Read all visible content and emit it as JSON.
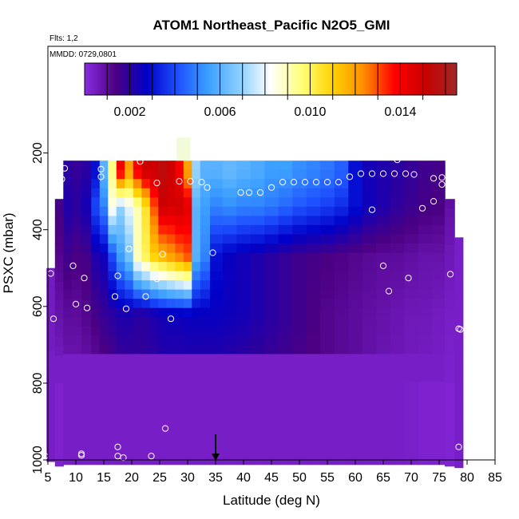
{
  "chart_data": {
    "type": "heatmap",
    "title": "ATOM1 Northeast_Pacific N2O5_GMI",
    "note_flights": "Flts: 1,2",
    "note_dates": "MMDD: 0729,0801",
    "xlabel": "Latitude (deg N)",
    "ylabel": "PSXC (mbar)",
    "xlim": [
      5,
      85
    ],
    "ylim": [
      1000,
      0
    ],
    "xticks": [
      5,
      10,
      15,
      20,
      25,
      30,
      35,
      40,
      45,
      50,
      55,
      60,
      65,
      70,
      75,
      80,
      85
    ],
    "yticks": [
      200,
      400,
      600,
      800,
      1000
    ],
    "colorbar": {
      "range": [
        0,
        0.0165
      ],
      "ticks": [
        0.002,
        0.006,
        0.01,
        0.014
      ],
      "tick_labels": [
        "0.002",
        "0.006",
        "0.010",
        "0.014"
      ],
      "colors": [
        "#8a2be2",
        "#4b0082",
        "#0000c8",
        "#1e50ff",
        "#3ca0ff",
        "#8ccfff",
        "#ffffff",
        "#ffff78",
        "#ffd200",
        "#ff8c00",
        "#ff0000",
        "#c80000",
        "#a02828"
      ]
    },
    "columns": [
      {
        "lat": 5.5,
        "ptop": 500,
        "values": [
          0.0005
        ]
      },
      {
        "lat": 7,
        "ptop": 320,
        "values": [
          0.0018,
          0.0015,
          0.0012,
          0.0008,
          0.0004
        ]
      },
      {
        "lat": 8.5,
        "ptop": 220,
        "values": [
          0.002,
          0.0022,
          0.0016,
          0.001,
          0.0006
        ]
      },
      {
        "lat": 10,
        "ptop": 220,
        "values": [
          0.0018,
          0.002,
          0.0014,
          0.001,
          0.0006
        ]
      },
      {
        "lat": 12,
        "ptop": 220,
        "values": [
          0.002,
          0.0024,
          0.0015,
          0.0012,
          0.0007
        ]
      },
      {
        "lat": 13.5,
        "ptop": 220,
        "values": [
          0.003,
          0.004,
          0.0022,
          0.0015,
          0.0008
        ]
      },
      {
        "lat": 15,
        "ptop": 220,
        "values": [
          0.006,
          0.005,
          0.0025,
          0.0018,
          0.001
        ]
      },
      {
        "lat": 16.5,
        "ptop": 220,
        "values": [
          0.0095,
          0.0085,
          0.004,
          0.002,
          0.0012
        ]
      },
      {
        "lat": 18,
        "ptop": 220,
        "values": [
          0.014,
          0.007,
          0.0055,
          0.0022,
          0.0015
        ]
      },
      {
        "lat": 19.5,
        "ptop": 220,
        "values": [
          0.012,
          0.008,
          0.0065,
          0.0022,
          0.0016
        ]
      },
      {
        "lat": 21,
        "ptop": 220,
        "values": [
          0.014,
          0.009,
          0.009,
          0.002,
          0.0017
        ]
      },
      {
        "lat": 22.5,
        "ptop": 220,
        "values": [
          0.015,
          0.0105,
          0.01,
          0.002,
          0.0018
        ]
      },
      {
        "lat": 24,
        "ptop": 220,
        "values": [
          0.015,
          0.013,
          0.011,
          0.0022,
          0.0018
        ]
      },
      {
        "lat": 25.5,
        "ptop": 220,
        "values": [
          0.0155,
          0.015,
          0.0115,
          0.0024,
          0.0019
        ]
      },
      {
        "lat": 27,
        "ptop": 220,
        "values": [
          0.015,
          0.0148,
          0.012,
          0.0025,
          0.0019
        ]
      },
      {
        "lat": 28.5,
        "ptop": 220,
        "values": [
          0.014,
          0.015,
          0.0125,
          0.0025,
          0.0019
        ]
      },
      {
        "lat": 30,
        "ptop": 220,
        "values": [
          0.012,
          0.0145,
          0.013,
          0.0026,
          0.0019
        ]
      },
      {
        "lat": 31.5,
        "ptop": 220,
        "values": [
          0.007,
          0.006,
          0.006,
          0.0026,
          0.0019
        ]
      },
      {
        "lat": 33,
        "ptop": 220,
        "values": [
          0.006,
          0.0055,
          0.005,
          0.0026,
          0.0019
        ]
      },
      {
        "lat": 35,
        "ptop": 220,
        "values": [
          0.006,
          0.005,
          0.003,
          0.0026,
          0.0019
        ]
      },
      {
        "lat": 37.5,
        "ptop": 220,
        "values": [
          0.0062,
          0.0052,
          0.0026,
          0.0025,
          0.0018
        ]
      },
      {
        "lat": 40,
        "ptop": 220,
        "values": [
          0.006,
          0.005,
          0.0024,
          0.0024,
          0.0017
        ]
      },
      {
        "lat": 42.5,
        "ptop": 220,
        "values": [
          0.0058,
          0.005,
          0.0022,
          0.0022,
          0.0017
        ]
      },
      {
        "lat": 45,
        "ptop": 220,
        "values": [
          0.0055,
          0.0048,
          0.002,
          0.002,
          0.0016
        ]
      },
      {
        "lat": 47.5,
        "ptop": 220,
        "values": [
          0.0055,
          0.0045,
          0.0018,
          0.0018,
          0.0015
        ]
      },
      {
        "lat": 50,
        "ptop": 220,
        "values": [
          0.0052,
          0.0042,
          0.0016,
          0.0016,
          0.0014
        ]
      },
      {
        "lat": 52.5,
        "ptop": 220,
        "values": [
          0.005,
          0.004,
          0.0015,
          0.0014,
          0.0013
        ]
      },
      {
        "lat": 55,
        "ptop": 220,
        "values": [
          0.0048,
          0.0038,
          0.0014,
          0.0012,
          0.0012
        ]
      },
      {
        "lat": 57.5,
        "ptop": 220,
        "values": [
          0.0044,
          0.0035,
          0.0013,
          0.0011,
          0.0011
        ]
      },
      {
        "lat": 60,
        "ptop": 220,
        "values": [
          0.003,
          0.003,
          0.0012,
          0.001,
          0.001
        ]
      },
      {
        "lat": 62.5,
        "ptop": 220,
        "values": [
          0.0024,
          0.0025,
          0.0011,
          0.0009,
          0.0008
        ]
      },
      {
        "lat": 65,
        "ptop": 220,
        "values": [
          0.0022,
          0.0022,
          0.001,
          0.0008,
          0.0007
        ]
      },
      {
        "lat": 67.5,
        "ptop": 220,
        "values": [
          0.002,
          0.0019,
          0.001,
          0.0007,
          0.0006
        ]
      },
      {
        "lat": 70,
        "ptop": 220,
        "values": [
          0.0018,
          0.0017,
          0.0009,
          0.0006,
          0.0005
        ]
      },
      {
        "lat": 72.5,
        "ptop": 220,
        "values": [
          0.0016,
          0.0015,
          0.0008,
          0.0006,
          0.0004
        ]
      },
      {
        "lat": 75,
        "ptop": 220,
        "values": [
          0.0015,
          0.0014,
          0.0008,
          0.0005,
          0.0004
        ]
      },
      {
        "lat": 77,
        "ptop": 320,
        "values": [
          0.0012,
          0.0009,
          0.0006,
          0.0004,
          0.0003
        ]
      },
      {
        "lat": 78.5,
        "ptop": 420,
        "values": [
          0.0004
        ]
      }
    ],
    "observations": [
      {
        "lat": 8,
        "p": 240
      },
      {
        "lat": 7.5,
        "p": 268
      },
      {
        "lat": 14.5,
        "p": 242
      },
      {
        "lat": 14.5,
        "p": 262
      },
      {
        "lat": 24.5,
        "p": 278
      },
      {
        "lat": 21.5,
        "p": 222
      },
      {
        "lat": 28.5,
        "p": 274
      },
      {
        "lat": 30.5,
        "p": 274
      },
      {
        "lat": 32.5,
        "p": 276
      },
      {
        "lat": 33.5,
        "p": 290
      },
      {
        "lat": 39.5,
        "p": 303
      },
      {
        "lat": 41,
        "p": 303
      },
      {
        "lat": 43,
        "p": 303
      },
      {
        "lat": 45,
        "p": 290
      },
      {
        "lat": 47,
        "p": 276
      },
      {
        "lat": 49,
        "p": 276
      },
      {
        "lat": 51,
        "p": 276
      },
      {
        "lat": 53,
        "p": 276
      },
      {
        "lat": 55,
        "p": 276
      },
      {
        "lat": 57,
        "p": 276
      },
      {
        "lat": 59,
        "p": 262
      },
      {
        "lat": 61,
        "p": 254
      },
      {
        "lat": 63,
        "p": 254
      },
      {
        "lat": 65,
        "p": 254
      },
      {
        "lat": 67,
        "p": 254
      },
      {
        "lat": 67.5,
        "p": 218
      },
      {
        "lat": 69,
        "p": 254
      },
      {
        "lat": 70.5,
        "p": 256
      },
      {
        "lat": 74,
        "p": 266
      },
      {
        "lat": 75.5,
        "p": 264
      },
      {
        "lat": 75.5,
        "p": 282
      },
      {
        "lat": 74,
        "p": 326
      },
      {
        "lat": 72,
        "p": 344
      },
      {
        "lat": 63,
        "p": 348
      },
      {
        "lat": 19.5,
        "p": 450
      },
      {
        "lat": 25.5,
        "p": 464
      },
      {
        "lat": 34.5,
        "p": 460
      },
      {
        "lat": 9.5,
        "p": 494
      },
      {
        "lat": 65,
        "p": 494
      },
      {
        "lat": 11.5,
        "p": 526
      },
      {
        "lat": 17.5,
        "p": 520
      },
      {
        "lat": 24.5,
        "p": 528
      },
      {
        "lat": 69.5,
        "p": 526
      },
      {
        "lat": 77,
        "p": 516
      },
      {
        "lat": 5.5,
        "p": 514
      },
      {
        "lat": 66,
        "p": 560
      },
      {
        "lat": 17,
        "p": 574
      },
      {
        "lat": 22.5,
        "p": 574
      },
      {
        "lat": 10,
        "p": 594
      },
      {
        "lat": 12,
        "p": 604
      },
      {
        "lat": 19,
        "p": 606
      },
      {
        "lat": 6,
        "p": 632
      },
      {
        "lat": 27,
        "p": 632
      },
      {
        "lat": 78.5,
        "p": 658
      },
      {
        "lat": 78.8,
        "p": 660
      },
      {
        "lat": 26,
        "p": 918
      },
      {
        "lat": 17.5,
        "p": 966
      },
      {
        "lat": 78.5,
        "p": 966
      },
      {
        "lat": 11,
        "p": 984
      },
      {
        "lat": 11,
        "p": 988
      },
      {
        "lat": 4.5,
        "p": 990
      },
      {
        "lat": 17.5,
        "p": 990
      },
      {
        "lat": 18.5,
        "p": 994
      },
      {
        "lat": 23.5,
        "p": 990
      }
    ],
    "highlight_box": {
      "lat": [
        28,
        30.5
      ],
      "p": [
        160,
        220
      ]
    },
    "arrow_marker": {
      "lat": 35,
      "p": [
        950,
        1000
      ]
    }
  }
}
